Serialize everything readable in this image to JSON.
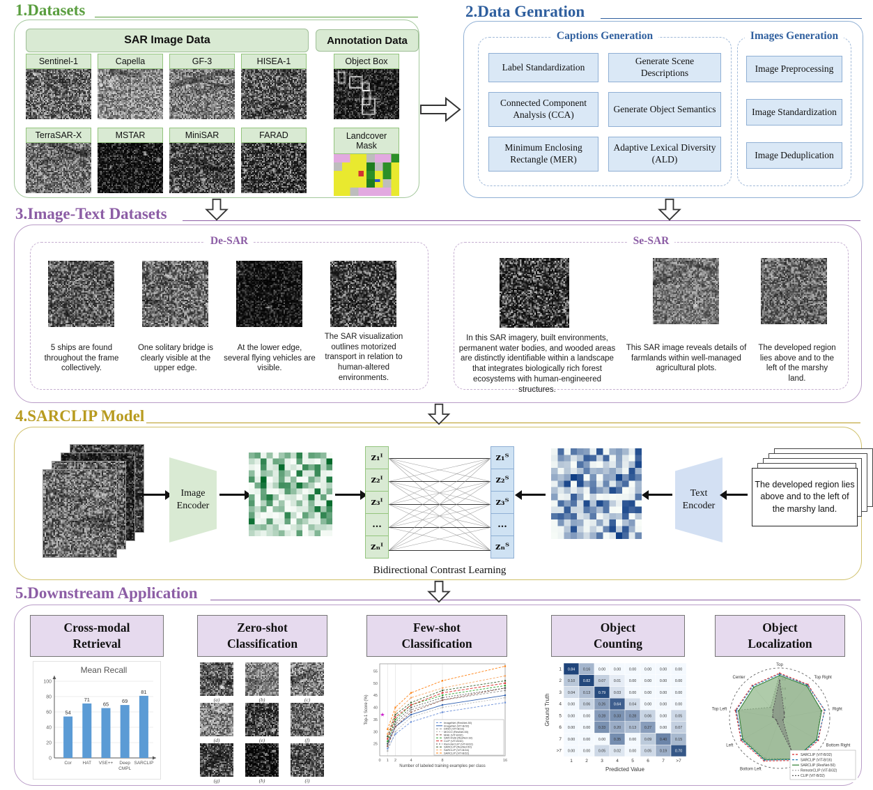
{
  "colors": {
    "green_accent": "#5a9e3f",
    "green_fill": "#d9ead3",
    "green_border": "#93c47d",
    "blue_accent": "#2f5f9e",
    "blue_fill": "#dae8f6",
    "blue_border": "#8fafd4",
    "purple_accent": "#8c5da5",
    "purple_border": "#b99cc7",
    "gold_accent": "#b89b20",
    "gold_border": "#cfc06a",
    "panel_header_fill": "#e6daee",
    "bar_color": "#5b9bd5"
  },
  "datasets": {
    "title": "1.Datasets",
    "sar_header": "SAR Image Data",
    "annotation_header": "Annotation Data",
    "sar_tiles": [
      "Sentinel-1",
      "Capella",
      "GF-3",
      "HISEA-1",
      "TerraSAR-X",
      "MSTAR",
      "MiniSAR",
      "FARAD"
    ],
    "annotation_tiles": [
      "Object Box",
      "Landcover Mask"
    ]
  },
  "data_generation": {
    "title": "2.Data Genration",
    "captions_group": {
      "title": "Captions Generation",
      "boxes": [
        "Label Standardization",
        "Generate Scene Descriptions",
        "Connected Component Analysis (CCA)",
        "Generate Object Semantics",
        "Minimum Enclosing Rectangle (MER)",
        "Adaptive Lexical Diversity (ALD)"
      ]
    },
    "images_group": {
      "title": "Images Generation",
      "boxes": [
        "Image Preprocessing",
        "Image Standardization",
        "Image Deduplication"
      ]
    }
  },
  "image_text": {
    "title": "3.Image-Text Datasets",
    "desar": {
      "title": "De-SAR",
      "captions": [
        "5 ships are found throughout the frame collectively.",
        "One solitary bridge is clearly visible at the upper edge.",
        "At the lower edge, several flying vehicles are visible.",
        "The SAR visualization outlines motorized transport in relation to human-altered environments."
      ]
    },
    "sesar": {
      "title": "Se-SAR",
      "captions": [
        "In this SAR imagery, built environments, permanent water bodies, and wooded areas are distinctly identifiable within a landscape that integrates biologically rich forest ecosystems with human-engineered structures.",
        "This SAR image reveals details of farmlands within well-managed agricultural plots.",
        "The developed region lies above and to the left of the marshy land."
      ]
    }
  },
  "model": {
    "title": "4.SARCLIP Model",
    "image_encoder": "Image Encoder",
    "text_encoder": "Text Encoder",
    "image_tokens": [
      "z₁ᴵ",
      "z₂ᴵ",
      "z₃ᴵ",
      "...",
      "zₙᴵ"
    ],
    "text_tokens": [
      "z₁ᵀ",
      "z₂ᵀ",
      "z₃ᵀ",
      "...",
      "zₙᵀ"
    ],
    "caption": "Bidirectional Contrast Learning",
    "text_card": "The developed region lies above and to the left of the marshy land."
  },
  "downstream": {
    "title": "5.Downstream Application",
    "panels": [
      {
        "title_lines": [
          "Cross-modal",
          "Retrieval"
        ]
      },
      {
        "title_lines": [
          "Zero-shot",
          "Classification"
        ]
      },
      {
        "title_lines": [
          "Few-shot",
          "Classification"
        ]
      },
      {
        "title_lines": [
          "Object",
          "Counting"
        ]
      },
      {
        "title_lines": [
          "Object",
          "Localization"
        ]
      }
    ],
    "zero_shot_labels": [
      "(a)",
      "(b)",
      "(c)",
      "(d)",
      "(e)",
      "(f)",
      "(g)",
      "(h)",
      "(i)"
    ]
  },
  "chart_data": [
    {
      "id": "mean_recall",
      "type": "bar",
      "title": "Mean Recall",
      "categories": [
        "Cor",
        "HAT",
        "VSE++",
        "Deep CMPL",
        "SARCLIP"
      ],
      "values": [
        54,
        71,
        65,
        69,
        81
      ],
      "xlabel": "",
      "ylabel": "",
      "ylim": [
        0,
        100
      ],
      "yticks": [
        0,
        20,
        40,
        60,
        80,
        100
      ],
      "bar_color": "#5b9bd5",
      "grid": true,
      "legend_position": "none"
    },
    {
      "id": "few_shot",
      "type": "line",
      "xlabel": "Number of labeled training examples per class",
      "ylabel": "Top-1 Score (%)",
      "x": [
        1,
        2,
        4,
        8,
        16
      ],
      "xticks": [
        0,
        1,
        2,
        4,
        8,
        16
      ],
      "ylim": [
        20,
        58
      ],
      "yticks": [
        25,
        30,
        35,
        40,
        45,
        50,
        55
      ],
      "zero_shot_marker": {
        "x": 0.35,
        "y": 37,
        "color": "#cc22cc"
      },
      "legend_position": "lower right",
      "grid": true,
      "series": [
        {
          "name": "ImageNet (ResNet-50)",
          "color": "#6a8fd8",
          "dash": "3 2",
          "values": [
            23,
            29,
            34,
            38,
            42
          ]
        },
        {
          "name": "ImageNet (ViT-B/32)",
          "color": "#2e5fb0",
          "dash": "",
          "values": [
            25,
            32,
            37,
            41,
            45
          ]
        },
        {
          "name": "DINO (ViT-B/16)",
          "color": "#8c8c8c",
          "dash": "3 2",
          "values": [
            24,
            33,
            39,
            43,
            47
          ]
        },
        {
          "name": "MOCO (ResNet-50)",
          "color": "#b5b5b5",
          "dash": "2 2",
          "values": [
            22,
            30,
            36,
            40,
            44
          ]
        },
        {
          "name": "MAE (ViT-B/32)",
          "color": "#8c564b",
          "dash": "3 2",
          "values": [
            24,
            32,
            38,
            43,
            48
          ]
        },
        {
          "name": "SAR-HUB (ResNet-18)",
          "color": "#2ca02c",
          "dash": "3 2",
          "values": [
            26,
            35,
            41,
            45,
            49
          ]
        },
        {
          "name": "CLIP (ViT-B/32)",
          "color": "#d62728",
          "dash": "4 2",
          "values": [
            27,
            36,
            41,
            46,
            50
          ]
        },
        {
          "name": "RemoteCLIP (ViT-B/32)",
          "color": "#595959",
          "dash": "2 2",
          "values": [
            25,
            34,
            40,
            44,
            48
          ]
        },
        {
          "name": "SARCLIP (ResNet-50)",
          "color": "#3a5f2d",
          "dash": "3 2",
          "values": [
            28,
            37,
            42,
            47,
            51
          ]
        },
        {
          "name": "SARCLIP (ViT-B/16)",
          "color": "#f4a460",
          "dash": "3 2",
          "values": [
            29,
            38,
            44,
            48,
            53
          ]
        },
        {
          "name": "SARCLIP (ViT-B/32)",
          "color": "#ff7f0e",
          "dash": "3 2",
          "values": [
            31,
            40,
            46,
            51,
            57
          ]
        }
      ]
    },
    {
      "id": "object_counting",
      "type": "heatmap",
      "xlabel": "Predicted Value",
      "ylabel": "Ground Truth",
      "row_labels": [
        "1",
        "2",
        "3",
        "4",
        "5",
        "6",
        "7",
        ">7"
      ],
      "col_labels": [
        "1",
        "2",
        "3",
        "4",
        "5",
        "6",
        "7",
        ">7"
      ],
      "matrix": [
        [
          0.84,
          0.16,
          0.0,
          0.0,
          0.0,
          0.0,
          0.0,
          0.0
        ],
        [
          0.1,
          0.82,
          0.07,
          0.01,
          0.0,
          0.0,
          0.0,
          0.0
        ],
        [
          0.04,
          0.13,
          0.79,
          0.03,
          0.0,
          0.0,
          0.0,
          0.0
        ],
        [
          0.0,
          0.06,
          0.26,
          0.64,
          0.04,
          0.0,
          0.0,
          0.0
        ],
        [
          0.0,
          0.0,
          0.28,
          0.33,
          0.28,
          0.06,
          0.0,
          0.05
        ],
        [
          0.0,
          0.0,
          0.33,
          0.2,
          0.13,
          0.27,
          0.0,
          0.07
        ],
        [
          0.0,
          0.0,
          0.0,
          0.35,
          0.0,
          0.09,
          0.4,
          0.15
        ],
        [
          0.0,
          0.0,
          0.05,
          0.02,
          0.0,
          0.05,
          0.19,
          0.7
        ]
      ]
    },
    {
      "id": "object_localization",
      "type": "radar",
      "axes": [
        "Top",
        "Top Right",
        "Right",
        "Bottom Right",
        "Bottom",
        "Bottom Left",
        "Left",
        "Top Left",
        "Center"
      ],
      "rticks": [
        0.2,
        0.4,
        0.6,
        0.8
      ],
      "legend_position": "lower right",
      "series": [
        {
          "name": "SARCLIP (ViT-B/32)",
          "color": "#d62728",
          "dash": "3 2",
          "fill": "",
          "values": [
            0.95,
            0.93,
            0.96,
            0.94,
            0.95,
            0.96,
            0.94,
            0.95,
            0.9
          ]
        },
        {
          "name": "SARCLIP (ViT-B/16)",
          "color": "#1f77b4",
          "dash": "3 2",
          "fill": "",
          "values": [
            0.93,
            0.91,
            0.97,
            0.92,
            0.93,
            0.94,
            0.92,
            0.93,
            0.88
          ]
        },
        {
          "name": "SARCLIP (ResNet-50)",
          "color": "#2e7d32",
          "dash": "",
          "fill": "rgba(110,160,100,0.55)",
          "values": [
            0.9,
            0.89,
            0.9,
            0.9,
            0.92,
            0.93,
            0.9,
            0.88,
            0.85
          ]
        },
        {
          "name": "RemoteCLIP (ViT-B/32)",
          "color": "#9e9e9e",
          "dash": "2 2",
          "fill": "rgba(170,170,170,0.35)",
          "values": [
            0.93,
            0.92,
            0.88,
            0.9,
            0.92,
            0.9,
            0.88,
            0.95,
            0.3
          ]
        },
        {
          "name": "CLIP (ViT-B/32)",
          "color": "#555555",
          "dash": "2 2",
          "fill": "rgba(120,120,120,0.45)",
          "values": [
            0.8,
            0.15,
            0.1,
            0.08,
            0.72,
            0.12,
            0.08,
            0.15,
            0.22
          ]
        }
      ]
    }
  ]
}
